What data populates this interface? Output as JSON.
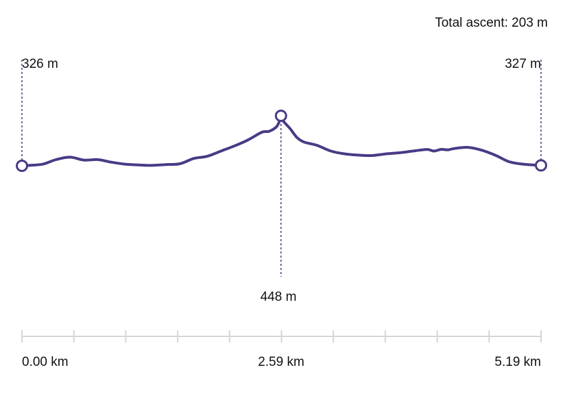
{
  "summary": {
    "total_ascent_text": "Total ascent: 203 m"
  },
  "markers": {
    "start_elevation_label": "326 m",
    "end_elevation_label": "327 m",
    "peak_elevation_label": "448 m"
  },
  "axis": {
    "start_label": "0.00 km",
    "mid_label": "2.59 km",
    "end_label": "5.19 km"
  },
  "colors": {
    "line": "#4a3a86",
    "axis": "#d6d6d6",
    "text": "#111111",
    "marker_fill": "#ffffff"
  },
  "chart_data": {
    "type": "line",
    "title": "",
    "xlabel": "",
    "ylabel": "",
    "x_unit": "km",
    "y_unit": "m",
    "xlim": [
      0,
      5.19
    ],
    "ylim": [
      326,
      448
    ],
    "grid": false,
    "legend": "none",
    "tick_count": 11,
    "x": [
      0.0,
      0.07,
      0.21,
      0.34,
      0.48,
      0.62,
      0.76,
      0.89,
      1.03,
      1.17,
      1.3,
      1.44,
      1.58,
      1.72,
      1.85,
      1.99,
      2.13,
      2.26,
      2.4,
      2.47,
      2.54,
      2.57,
      2.59,
      2.61,
      2.68,
      2.75,
      2.82,
      2.95,
      3.09,
      3.23,
      3.37,
      3.5,
      3.64,
      3.78,
      3.91,
      4.05,
      4.12,
      4.19,
      4.26,
      4.32,
      4.46,
      4.6,
      4.74,
      4.87,
      5.01,
      5.19
    ],
    "y": [
      326,
      327,
      330,
      341,
      347,
      340,
      341,
      335,
      330,
      328,
      327,
      329,
      331,
      344,
      349,
      362,
      375,
      389,
      408,
      410,
      420,
      432,
      448,
      436,
      417,
      395,
      384,
      376,
      362,
      355,
      352,
      351,
      355,
      358,
      362,
      366,
      362,
      366,
      365,
      368,
      371,
      364,
      351,
      336,
      330,
      327
    ],
    "annotations": [
      {
        "x": 0.0,
        "y": 326,
        "label": "326 m"
      },
      {
        "x": 2.59,
        "y": 448,
        "label": "448 m"
      },
      {
        "x": 5.19,
        "y": 327,
        "label": "327 m"
      }
    ]
  }
}
